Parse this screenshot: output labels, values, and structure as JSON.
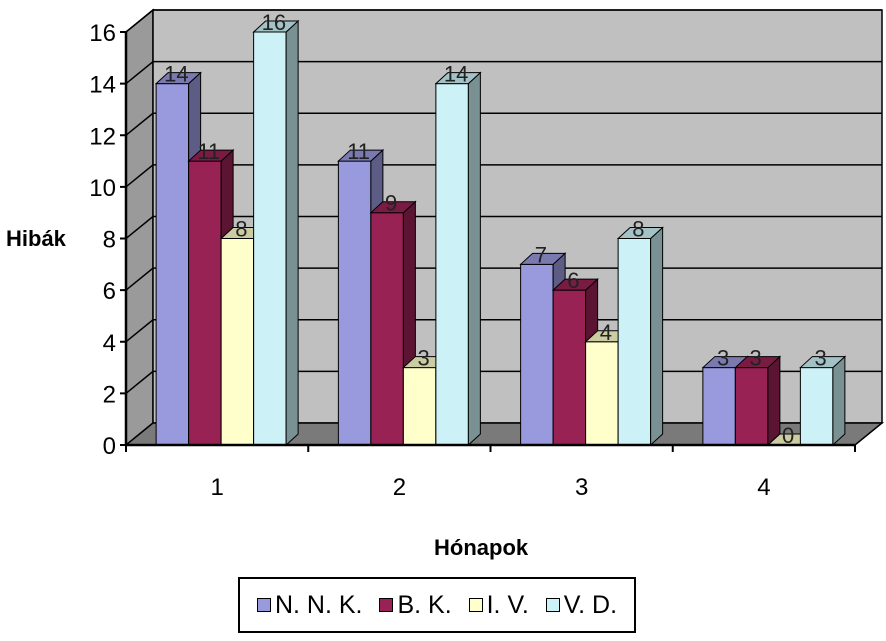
{
  "chart_data": {
    "type": "bar",
    "title": "",
    "xlabel": "Hónapok",
    "ylabel": "Hibák",
    "categories": [
      "1",
      "2",
      "3",
      "4"
    ],
    "ylim": [
      0,
      16
    ],
    "yticks": [
      "0",
      "2",
      "4",
      "6",
      "8",
      "10",
      "12",
      "14",
      "16"
    ],
    "grid": true,
    "legend_position": "bottom",
    "series": [
      {
        "name": "N. N. K.",
        "color": "#9999dd",
        "values": [
          14,
          11,
          7,
          3
        ]
      },
      {
        "name": "B. K.",
        "color": "#992255",
        "values": [
          11,
          9,
          6,
          3
        ]
      },
      {
        "name": "I. V.",
        "color": "#ffffcc",
        "values": [
          8,
          3,
          4,
          0
        ]
      },
      {
        "name": "V. D.",
        "color": "#ccf2f7",
        "values": [
          16,
          14,
          8,
          3
        ]
      }
    ],
    "data_labels": [
      [
        "14",
        "11",
        "7",
        "3"
      ],
      [
        "11",
        "9",
        "6",
        "3"
      ],
      [
        "8",
        "3",
        "4",
        "0"
      ],
      [
        "16",
        "14",
        "8",
        "3"
      ]
    ]
  }
}
